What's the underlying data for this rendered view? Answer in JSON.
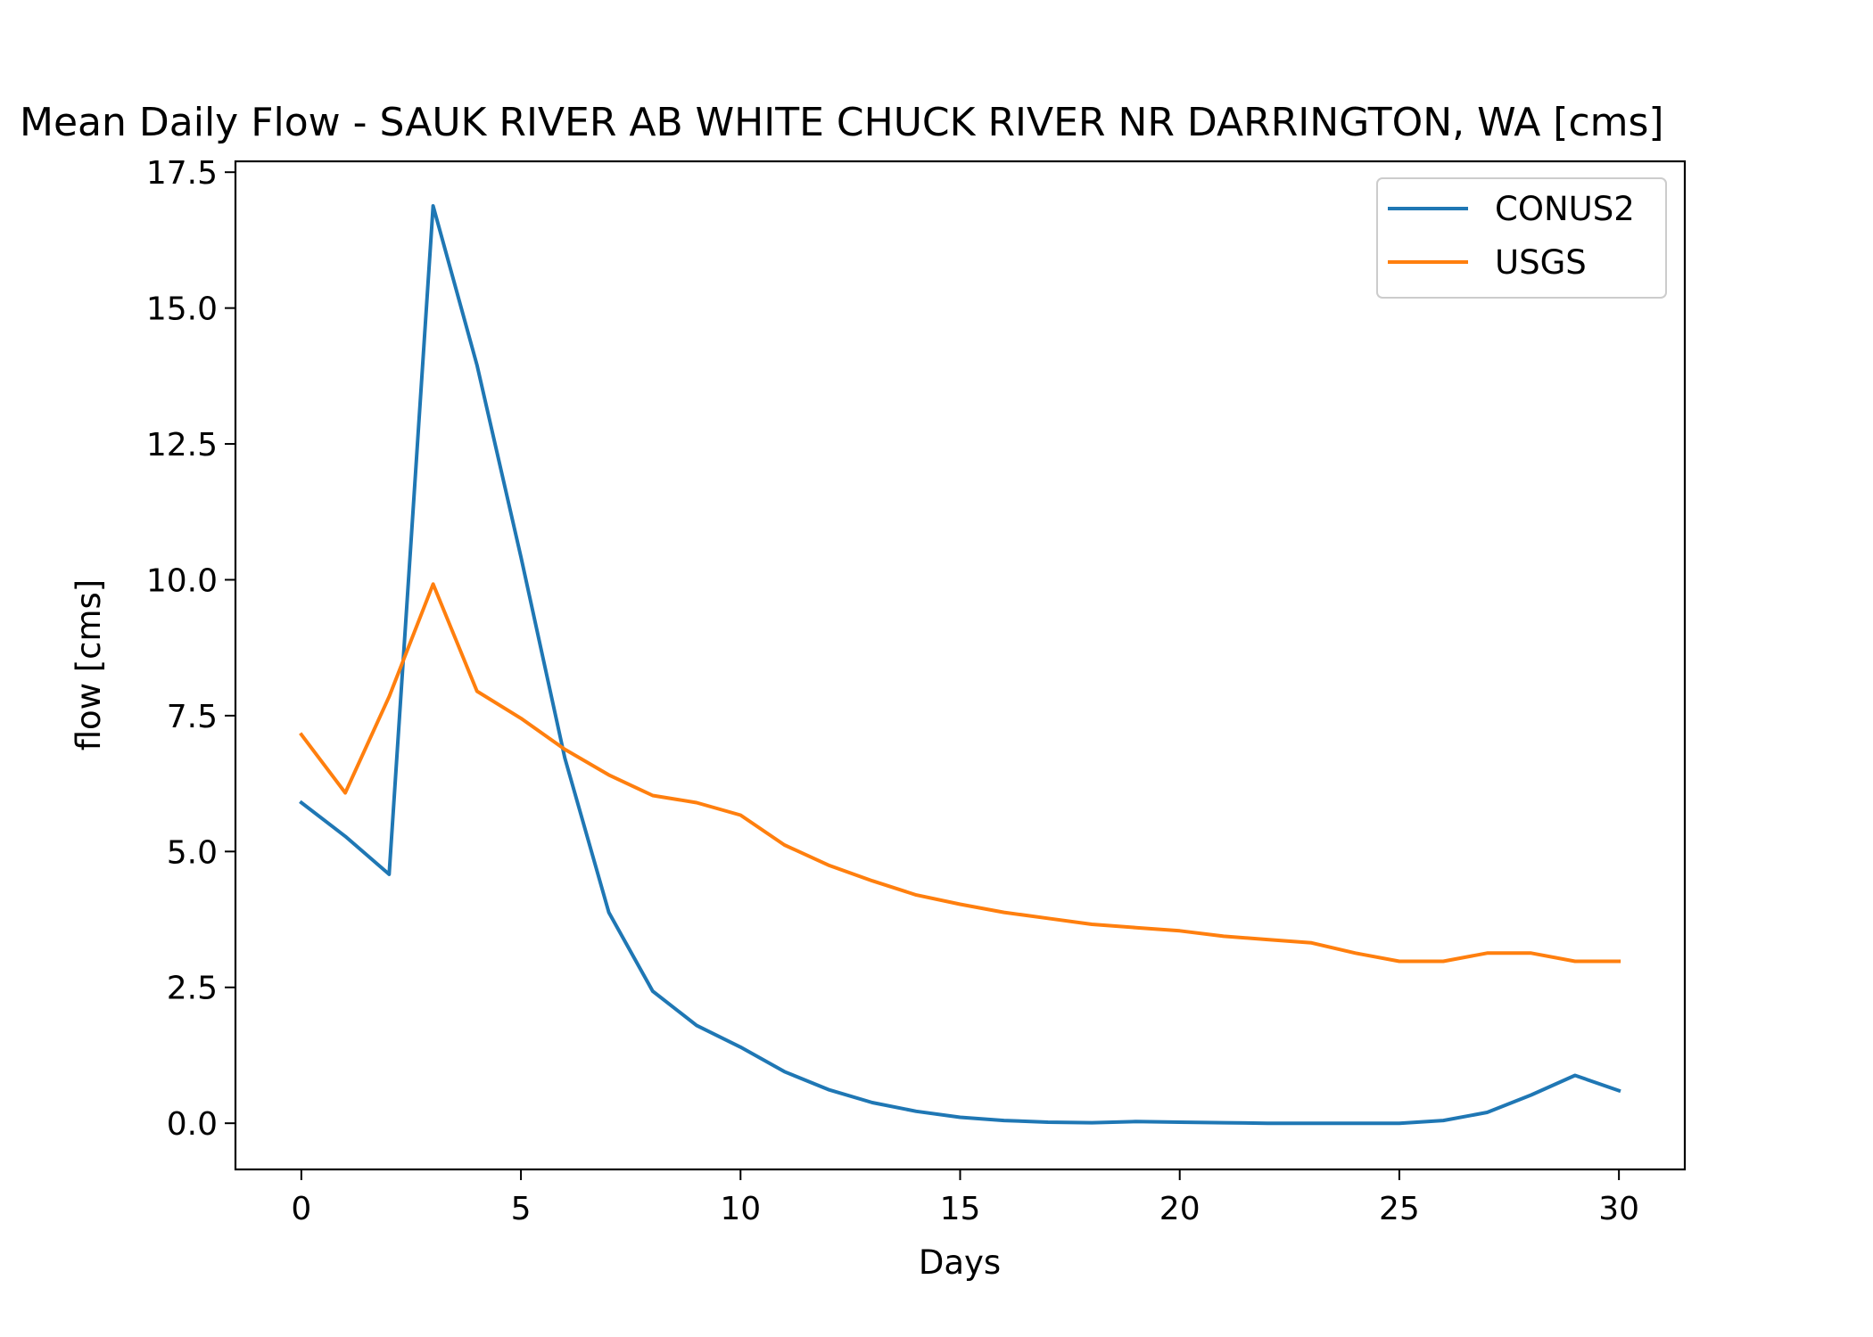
{
  "chart_data": {
    "type": "line",
    "title": "Mean Daily Flow - SAUK RIVER AB WHITE CHUCK RIVER NR  DARRINGTON, WA [cms]",
    "xlabel": "Days",
    "ylabel": "flow [cms]",
    "xlim": [
      -1.5,
      31.5
    ],
    "ylim": [
      -0.85,
      17.7
    ],
    "xticks": [
      0,
      5,
      10,
      15,
      20,
      25,
      30
    ],
    "xtick_labels": [
      "0",
      "5",
      "10",
      "15",
      "20",
      "25",
      "30"
    ],
    "yticks": [
      0,
      2.5,
      5,
      7.5,
      10,
      12.5,
      15,
      17.5
    ],
    "ytick_labels": [
      "0.0",
      "2.5",
      "5.0",
      "7.5",
      "10.0",
      "12.5",
      "15.0",
      "17.5"
    ],
    "grid": false,
    "legend_position": "top-right",
    "x": [
      0,
      1,
      2,
      3,
      4,
      5,
      6,
      7,
      8,
      9,
      10,
      11,
      12,
      13,
      14,
      15,
      16,
      17,
      18,
      19,
      20,
      21,
      22,
      23,
      24,
      25,
      26,
      27,
      28,
      29,
      30
    ],
    "series": [
      {
        "name": "CONUS2",
        "color": "#1f77b4",
        "values": [
          5.9,
          5.28,
          4.58,
          16.88,
          13.95,
          10.42,
          6.72,
          3.88,
          2.43,
          1.8,
          1.4,
          0.95,
          0.62,
          0.38,
          0.22,
          0.11,
          0.05,
          0.02,
          0.01,
          0.03,
          0.02,
          0.01,
          0.0,
          0.0,
          0.0,
          0.0,
          0.05,
          0.2,
          0.52,
          0.88,
          0.6
        ]
      },
      {
        "name": "USGS",
        "color": "#ff7f0e",
        "values": [
          7.15,
          6.08,
          7.85,
          9.92,
          7.95,
          7.45,
          6.88,
          6.41,
          6.03,
          5.9,
          5.67,
          5.12,
          4.75,
          4.46,
          4.2,
          4.03,
          3.88,
          3.77,
          3.66,
          3.6,
          3.54,
          3.44,
          3.38,
          3.32,
          3.13,
          2.98,
          2.98,
          3.13,
          3.13,
          2.98,
          2.98
        ]
      }
    ]
  }
}
